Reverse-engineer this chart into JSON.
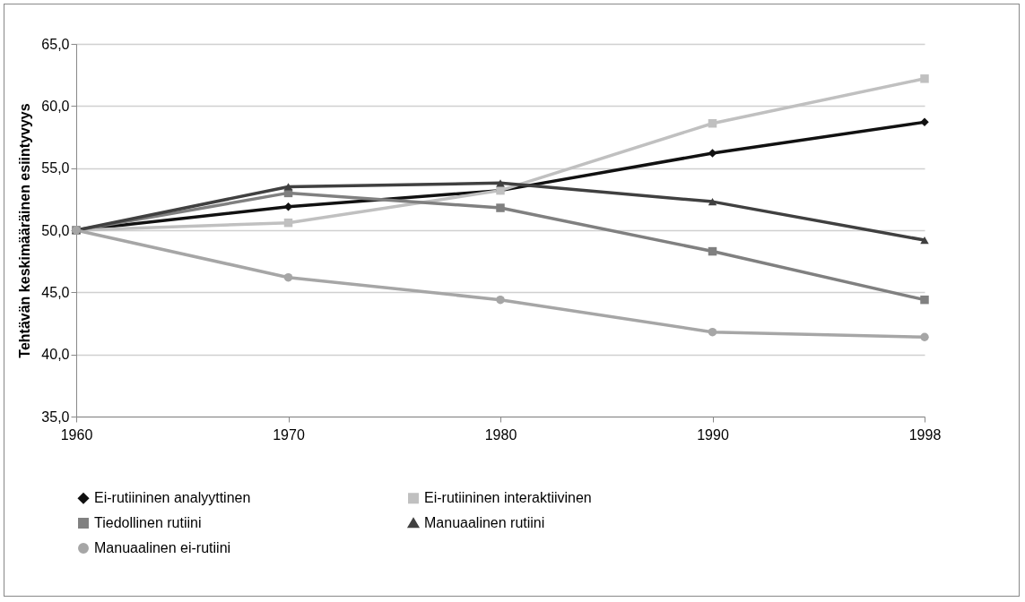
{
  "chart_data": {
    "type": "line",
    "ylabel": "Tehtävän keskimääräinen esiintyvyys",
    "categories": [
      "1960",
      "1970",
      "1980",
      "1990",
      "1998"
    ],
    "series": [
      {
        "name": "Ei-rutiininen analyyttinen",
        "color": "#111111",
        "marker": "diamond",
        "values": [
          50.0,
          51.9,
          53.2,
          56.2,
          58.7
        ]
      },
      {
        "name": "Ei-rutiininen interaktiivinen",
        "color": "#c0c0c0",
        "marker": "square",
        "values": [
          50.0,
          50.6,
          53.2,
          58.6,
          62.2
        ]
      },
      {
        "name": "Tiedollinen rutiini",
        "color": "#808080",
        "marker": "square",
        "values": [
          50.0,
          53.0,
          51.8,
          48.3,
          44.4
        ]
      },
      {
        "name": "Manuaalinen rutiini",
        "color": "#404040",
        "marker": "triangle",
        "values": [
          50.0,
          53.5,
          53.8,
          52.3,
          49.2
        ]
      },
      {
        "name": "Manuaalinen ei-rutiini",
        "color": "#a6a6a6",
        "marker": "circle",
        "values": [
          50.0,
          46.2,
          44.4,
          41.8,
          41.4
        ]
      }
    ],
    "ylim": [
      35,
      65
    ],
    "yticks": [
      {
        "value": 35,
        "label": "35,0"
      },
      {
        "value": 40,
        "label": "40,0"
      },
      {
        "value": 45,
        "label": "45,0"
      },
      {
        "value": 50,
        "label": "50,0"
      },
      {
        "value": 55,
        "label": "55,0"
      },
      {
        "value": 60,
        "label": "60,0"
      },
      {
        "value": 65,
        "label": "65,0"
      }
    ],
    "grid": "y",
    "legend": "bottom",
    "line_style": "solid"
  }
}
